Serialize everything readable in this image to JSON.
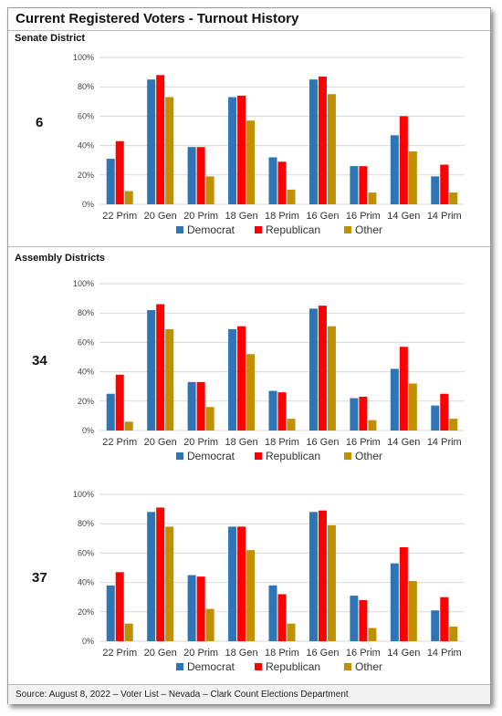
{
  "title": "Current Registered Voters - Turnout History",
  "sections": {
    "senate": "Senate District",
    "assembly": "Assembly Districts"
  },
  "source": "Source: August 8, 2022 – Voter List – Nevada – Clark Count Elections Department",
  "colors": {
    "Democrat": "#2e75b6",
    "Republican": "#ff0000",
    "Other": "#bf9000",
    "grid": "#d9d9d9"
  },
  "chart_data": [
    {
      "type": "bar",
      "district": "6",
      "categories": [
        "22 Prim",
        "20 Gen",
        "20 Prim",
        "18 Gen",
        "18 Prim",
        "16 Gen",
        "16 Prim",
        "14 Gen",
        "14 Prim"
      ],
      "series": [
        {
          "name": "Democrat",
          "values": [
            31,
            85,
            39,
            73,
            32,
            85,
            26,
            47,
            19
          ]
        },
        {
          "name": "Republican",
          "values": [
            43,
            88,
            39,
            74,
            29,
            87,
            26,
            60,
            27
          ]
        },
        {
          "name": "Other",
          "values": [
            9,
            73,
            19,
            57,
            10,
            75,
            8,
            36,
            8
          ]
        }
      ],
      "yticks": [
        "0%",
        "20%",
        "40%",
        "60%",
        "80%",
        "100%"
      ],
      "ylim": [
        0,
        100
      ],
      "grid": true,
      "legend": "bottom"
    },
    {
      "type": "bar",
      "district": "34",
      "categories": [
        "22 Prim",
        "20 Gen",
        "20 Prim",
        "18 Gen",
        "18 Prim",
        "16 Gen",
        "16 Prim",
        "14 Gen",
        "14 Prim"
      ],
      "series": [
        {
          "name": "Democrat",
          "values": [
            25,
            82,
            33,
            69,
            27,
            83,
            22,
            42,
            17
          ]
        },
        {
          "name": "Republican",
          "values": [
            38,
            86,
            33,
            71,
            26,
            85,
            23,
            57,
            25
          ]
        },
        {
          "name": "Other",
          "values": [
            6,
            69,
            16,
            52,
            8,
            71,
            7,
            32,
            8
          ]
        }
      ],
      "yticks": [
        "0%",
        "20%",
        "40%",
        "60%",
        "80%",
        "100%"
      ],
      "ylim": [
        0,
        100
      ],
      "grid": true,
      "legend": "bottom"
    },
    {
      "type": "bar",
      "district": "37",
      "categories": [
        "22 Prim",
        "20 Gen",
        "20 Prim",
        "18 Gen",
        "18 Prim",
        "16 Gen",
        "16 Prim",
        "14 Gen",
        "14 Prim"
      ],
      "series": [
        {
          "name": "Democrat",
          "values": [
            38,
            88,
            45,
            78,
            38,
            88,
            31,
            53,
            21
          ]
        },
        {
          "name": "Republican",
          "values": [
            47,
            91,
            44,
            78,
            32,
            89,
            28,
            64,
            30
          ]
        },
        {
          "name": "Other",
          "values": [
            12,
            78,
            22,
            62,
            12,
            79,
            9,
            41,
            10
          ]
        }
      ],
      "yticks": [
        "0%",
        "20%",
        "40%",
        "60%",
        "80%",
        "100%"
      ],
      "ylim": [
        0,
        100
      ],
      "grid": true,
      "legend": "bottom"
    }
  ]
}
